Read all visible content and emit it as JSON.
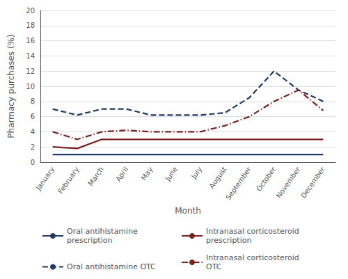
{
  "chart_data": {
    "type": "line",
    "categories": [
      "January",
      "February",
      "March",
      "April",
      "May",
      "June",
      "July",
      "August",
      "September",
      "October",
      "November",
      "December"
    ],
    "series": [
      {
        "name": "Oral antihistamine\nprescription",
        "color": "#1F3864",
        "line_style": "solid",
        "values": [
          1.0,
          1.0,
          1.0,
          1.0,
          1.0,
          1.0,
          1.0,
          1.0,
          1.0,
          1.0,
          1.0,
          1.0
        ]
      },
      {
        "name": "Intranasal corticosteroid\nprescription",
        "color": "#7B2020",
        "line_style": "solid",
        "values": [
          2.0,
          1.8,
          3.0,
          3.0,
          3.0,
          3.0,
          3.0,
          3.0,
          3.0,
          3.0,
          3.0,
          3.0
        ]
      },
      {
        "name": "Oral antihistamine OTC",
        "color": "#1F3864",
        "line_style": "dashed",
        "values": [
          7.0,
          6.2,
          7.0,
          7.0,
          6.2,
          6.2,
          6.2,
          6.5,
          8.5,
          12.0,
          9.5,
          8.0
        ]
      },
      {
        "name": "Intranasal corticosteroid\nOTC",
        "color": "#7B2020",
        "line_style": "dashdot",
        "values": [
          4.0,
          3.0,
          4.0,
          4.2,
          4.0,
          4.0,
          4.0,
          4.8,
          6.0,
          8.0,
          9.5,
          6.8
        ]
      }
    ],
    "xlabel": "Month",
    "ylabel": "Pharmacy purchases (%)",
    "ylim": [
      0,
      20
    ],
    "yticks": [
      0,
      2,
      4,
      6,
      8,
      10,
      12,
      14,
      16,
      18,
      20
    ],
    "grid": true,
    "legend": "bottom"
  }
}
